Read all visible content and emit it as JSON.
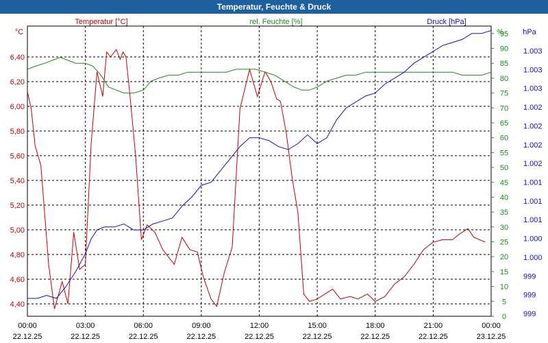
{
  "title": "Temperatur, Feuchte & Druck",
  "chart_data": {
    "type": "line",
    "title": "Temperatur, Feuchte & Druck",
    "x_ticks": [
      {
        "time": "00:00",
        "date": "22.12.25"
      },
      {
        "time": "03:00",
        "date": "22.12.25"
      },
      {
        "time": "06:00",
        "date": "22.12.25"
      },
      {
        "time": "09:00",
        "date": "22.12.25"
      },
      {
        "time": "12:00",
        "date": "22.12.25"
      },
      {
        "time": "15:00",
        "date": "22.12.25"
      },
      {
        "time": "18:00",
        "date": "22.12.25"
      },
      {
        "time": "21:00",
        "date": "22.12.25"
      },
      {
        "time": "00:00",
        "date": "23.12.25"
      }
    ],
    "x_range_hours": [
      0,
      24
    ],
    "axes": {
      "temperature": {
        "unit": "°C",
        "legend": "Temperatur [°C]",
        "color": "#c00000",
        "range": [
          4.3,
          6.65
        ],
        "ticks": [
          "4,40",
          "4,60",
          "4,80",
          "5,00",
          "5,20",
          "5,40",
          "5,60",
          "5,80",
          "6,00",
          "6,20",
          "6,40"
        ],
        "tick_values": [
          4.4,
          4.6,
          4.8,
          5.0,
          5.2,
          5.4,
          5.6,
          5.8,
          6.0,
          6.2,
          6.4
        ]
      },
      "humidity": {
        "unit": "%",
        "legend": "rel. Feuchte [%]",
        "color": "#1a8a1a",
        "range": [
          0,
          97.5
        ],
        "ticks": [
          "0",
          "5",
          "10",
          "15",
          "20",
          "25",
          "30",
          "35",
          "40",
          "45",
          "50",
          "55",
          "60",
          "65",
          "70",
          "75",
          "80",
          "85",
          "90",
          "95"
        ],
        "tick_values": [
          0,
          5,
          10,
          15,
          20,
          25,
          30,
          35,
          40,
          45,
          50,
          55,
          60,
          65,
          70,
          75,
          80,
          85,
          90,
          95
        ]
      },
      "pressure": {
        "unit": "hPa",
        "legend": "Druck [hPa]",
        "color": "#1010b0",
        "ticks": [
          "1.003",
          "1.003",
          "1.003",
          "1.002",
          "1.002",
          "1.002",
          "1.002",
          "1.001",
          "1.001",
          "1.001",
          "1.000",
          "1.000",
          "999",
          "999",
          "999"
        ]
      }
    },
    "series": [
      {
        "name": "Temperatur",
        "axis": "temperature",
        "color": "#c00000",
        "x": [
          0,
          0.2,
          0.4,
          0.7,
          1.1,
          1.4,
          1.8,
          2.1,
          2.4,
          2.7,
          3.0,
          3.3,
          3.6,
          3.9,
          4.1,
          4.3,
          4.6,
          4.8,
          4.95,
          5.1,
          5.3,
          5.6,
          5.9,
          6.2,
          6.6,
          7.0,
          7.3,
          7.6,
          8.0,
          8.4,
          8.8,
          9.1,
          9.5,
          9.8,
          10.2,
          10.6,
          11.0,
          11.5,
          11.9,
          12.3,
          12.6,
          12.9,
          13.1,
          13.4,
          13.7,
          14.0,
          14.3,
          14.6,
          15.0,
          15.4,
          15.8,
          16.2,
          16.7,
          17.1,
          17.6,
          18.0,
          18.5,
          19.0,
          19.5,
          20.0,
          20.5,
          21.0,
          21.5,
          22.0,
          22.4,
          22.8,
          23.1,
          23.4,
          23.7
        ],
        "values": [
          6.12,
          5.98,
          5.68,
          5.52,
          4.72,
          4.36,
          4.58,
          4.4,
          4.98,
          4.68,
          4.72,
          5.7,
          6.28,
          6.08,
          6.44,
          6.4,
          6.46,
          6.38,
          6.44,
          6.4,
          6.1,
          5.6,
          4.92,
          5.04,
          4.98,
          4.84,
          4.78,
          4.72,
          4.94,
          4.84,
          4.82,
          4.62,
          4.44,
          4.38,
          4.66,
          4.86,
          5.98,
          6.3,
          6.08,
          6.28,
          6.2,
          6.06,
          6.04,
          5.78,
          5.42,
          5.14,
          4.48,
          4.42,
          4.44,
          4.48,
          4.52,
          4.44,
          4.46,
          4.44,
          4.48,
          4.42,
          4.46,
          4.56,
          4.62,
          4.72,
          4.84,
          4.9,
          4.92,
          4.92,
          4.97,
          5.01,
          4.94,
          4.92,
          4.9
        ]
      },
      {
        "name": "rel. Feuchte",
        "axis": "humidity",
        "color": "#1a8a1a",
        "x": [
          0,
          0.4,
          0.9,
          1.3,
          1.7,
          2.1,
          2.5,
          3.0,
          3.4,
          3.8,
          4.2,
          4.6,
          5.0,
          5.5,
          6.0,
          6.4,
          6.8,
          7.3,
          7.8,
          8.3,
          8.8,
          9.3,
          9.8,
          10.3,
          10.8,
          11.3,
          11.8,
          12.3,
          12.8,
          13.3,
          13.8,
          14.2,
          14.6,
          15.0,
          15.5,
          16.0,
          16.5,
          17.0,
          17.5,
          18.0,
          18.5,
          19.0,
          19.5,
          20.0,
          20.5,
          21.0,
          21.5,
          22.0,
          22.5,
          23.0,
          23.5,
          24.0
        ],
        "values": [
          83,
          84,
          85,
          86,
          87,
          86,
          85,
          85,
          84,
          81,
          77,
          76,
          75,
          75,
          76,
          79,
          80,
          81,
          81,
          82,
          82,
          82,
          82,
          82,
          83,
          83,
          83,
          82,
          81,
          79,
          77,
          76,
          76,
          77,
          79,
          80,
          81,
          81,
          82,
          82,
          82,
          82,
          82,
          82,
          82,
          82,
          82,
          82,
          81,
          81,
          81,
          82
        ]
      },
      {
        "name": "Druck",
        "axis": "pressure",
        "color": "#1010b0",
        "x": [
          0,
          0.5,
          1.0,
          1.5,
          2.0,
          2.5,
          3.0,
          3.3,
          3.6,
          4.0,
          4.5,
          5.0,
          5.5,
          6.0,
          6.5,
          7.0,
          7.5,
          8.0,
          8.5,
          9.0,
          9.5,
          10.0,
          10.5,
          11.0,
          11.5,
          12.0,
          12.5,
          13.0,
          13.5,
          14.0,
          14.5,
          15.0,
          15.5,
          16.0,
          16.5,
          17.0,
          17.5,
          18.0,
          18.5,
          19.0,
          19.5,
          20.0,
          20.5,
          21.0,
          21.5,
          22.0,
          22.5,
          23.0,
          23.5,
          24.0
        ],
        "values": [
          6,
          6,
          7,
          6,
          10,
          15,
          21,
          26,
          29,
          30,
          30,
          31,
          29,
          29,
          31,
          32,
          33,
          37,
          40,
          44,
          45,
          49,
          53,
          57,
          60,
          60,
          59,
          57,
          56,
          58,
          61,
          58,
          60,
          66,
          70,
          72,
          74,
          75,
          78,
          80,
          82,
          85,
          87,
          89,
          91,
          92,
          93,
          95,
          95,
          96
        ]
      }
    ]
  }
}
